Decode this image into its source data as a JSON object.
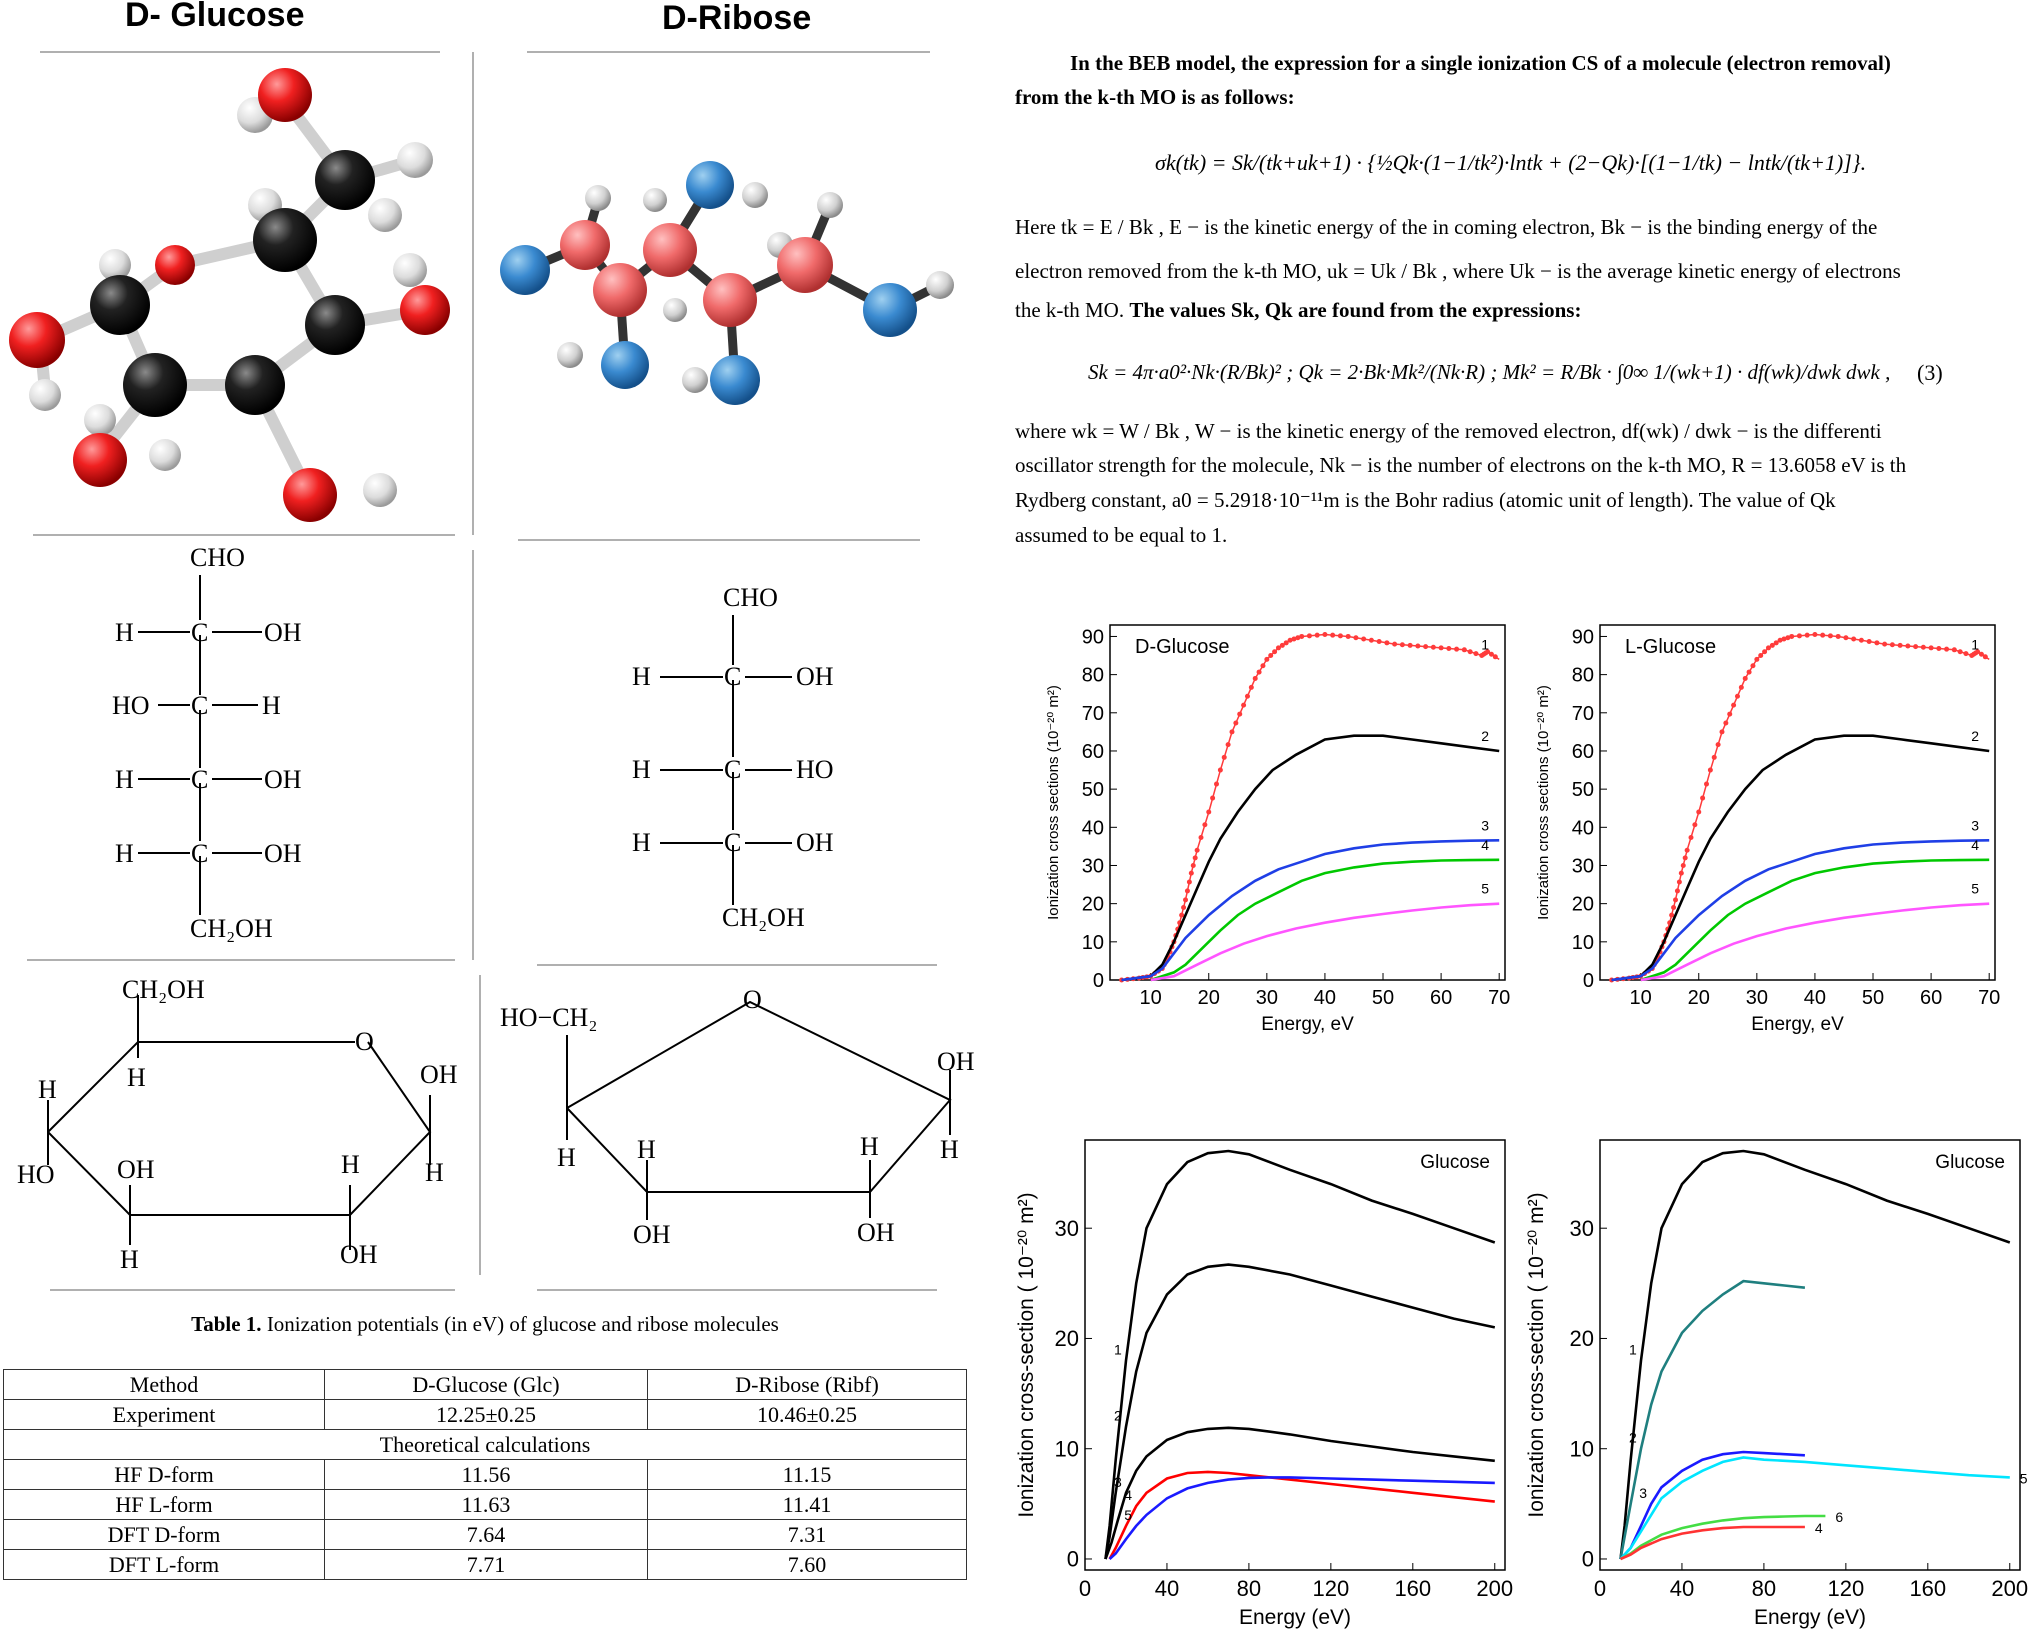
{
  "headers": {
    "glucose": "D- Glucose",
    "ribose": "D-Ribose"
  },
  "fischer_glucose": {
    "top": "CHO",
    "h": "H",
    "c": "C",
    "oh": "OH",
    "ho": "HO",
    "bottom": "CH₂OH"
  },
  "fischer_ribose": {
    "top": "CHO",
    "h": "H",
    "c": "C",
    "oh": "OH",
    "ho": "HO",
    "bottom": "CH₂OH"
  },
  "ring_glucose": {
    "top": "CH₂OH",
    "o": "O",
    "oh": "OH",
    "h": "H",
    "ho": "HO"
  },
  "ring_ribose": {
    "top": "HO−CH₂",
    "o": "O",
    "oh": "OH",
    "h": "H"
  },
  "text": {
    "p1_l1": "In the BEB model, the expression for a single ionization CS of a molecule (electron removal)",
    "p1_l2": "from the k-th MO is as follows:",
    "eq1": "σk(tk) = Sk/(tk+uk+1) · {½Qk·(1−1/tk²)·lntk + (2−Qk)·[(1−1/tk) − lntk/(tk+1)]}.",
    "p2_l1": "Here tk = E / Bk , E − is the kinetic energy of the in coming electron, Bk − is the binding energy of the",
    "p2_l2": "electron removed from the k-th MO, uk = Uk / Bk , where Uk − is the average kinetic energy of electrons",
    "p2_l3a": "the k-th MO. ",
    "p2_l3b": "The values Sk, Qk are found from the expressions:",
    "eq2": "Sk = 4π·a0²·Nk·(R/Bk)² ; Qk = 2·Bk·Mk²/(Nk·R) ; Mk² = R/Bk · ∫0∞ 1/(wk+1) · df(wk)/dwk dwk ,",
    "eq2_num": "(3)",
    "p3_l1": "where  wk = W / Bk , W − is the kinetic energy of the removed electron, df(wk) / dwk − is the differenti",
    "p3_l2": "oscillator strength for the molecule, Nk − is the number of electrons on the k-th MO, R = 13.6058 eV is th",
    "p3_l3": "Rydberg  constant,  a0 = 5.2918·10⁻¹¹m  is the Bohr radius (atomic unit of length). The value of Qk",
    "p3_l4": "assumed to be equal to 1."
  },
  "table": {
    "caption_bold": "Table 1.",
    "caption_rest": " Ionization potentials (in eV) of glucose and ribose molecules",
    "headers": [
      "Method",
      "D-Glucose (Glc)",
      "D-Ribose (Ribf)"
    ],
    "section": "Theoretical calculations",
    "rows": [
      [
        "Experiment",
        "12.25±0.25",
        "10.46±0.25"
      ],
      [
        "HF D-form",
        "11.56",
        "11.15"
      ],
      [
        "HF L-form",
        "11.63",
        "11.41"
      ],
      [
        "DFT D-form",
        "7.64",
        "7.31"
      ],
      [
        "DFT L-form",
        "7.71",
        "7.60"
      ]
    ]
  },
  "chart_data": [
    {
      "type": "line",
      "title": "D-Glucose",
      "xlabel": "Energy, eV",
      "ylabel": "Ionization cross sections (10⁻²⁰ m²)",
      "xlim": [
        3,
        71
      ],
      "ylim": [
        0,
        93
      ],
      "xticks": [
        10,
        20,
        30,
        40,
        50,
        60,
        70
      ],
      "yticks": [
        0,
        10,
        20,
        30,
        40,
        50,
        60,
        70,
        80,
        90
      ],
      "series": [
        {
          "name": "1",
          "color": "#ff3b3b",
          "markers": true,
          "x": [
            5,
            8,
            10,
            12,
            13,
            14,
            15,
            16,
            17,
            18,
            20,
            22,
            24,
            26,
            28,
            30,
            32,
            34,
            36,
            40,
            44,
            48,
            52,
            56,
            60,
            64,
            67,
            68,
            70
          ],
          "y": [
            0,
            0.5,
            1,
            3,
            6,
            10,
            15,
            21,
            28,
            34,
            44,
            55,
            65,
            72,
            79,
            84,
            87,
            89,
            90,
            90.5,
            90,
            89,
            88,
            87.5,
            87,
            86.5,
            85,
            86,
            84
          ]
        },
        {
          "name": "2",
          "color": "#000000",
          "x": [
            5,
            10,
            12,
            14,
            16,
            18,
            20,
            22,
            25,
            28,
            31,
            35,
            40,
            45,
            50,
            55,
            60,
            65,
            70
          ],
          "y": [
            0,
            1,
            4,
            10,
            17,
            24,
            31,
            37,
            44,
            50,
            55,
            59,
            63,
            64,
            64,
            63,
            62,
            61,
            60
          ]
        },
        {
          "name": "3",
          "color": "#1f3fe6",
          "x": [
            5,
            10,
            12,
            14,
            16,
            18,
            20,
            24,
            28,
            32,
            36,
            40,
            45,
            50,
            55,
            60,
            65,
            70
          ],
          "y": [
            0,
            1,
            3,
            7,
            11,
            14,
            17,
            22,
            26,
            29,
            31,
            33,
            34.5,
            35.5,
            36,
            36.3,
            36.5,
            36.6
          ]
        },
        {
          "name": "4",
          "color": "#00c800",
          "x": [
            10,
            14,
            16,
            18,
            20,
            22,
            25,
            28,
            32,
            36,
            40,
            45,
            50,
            55,
            60,
            65,
            70
          ],
          "y": [
            0,
            2,
            4,
            7,
            10,
            13,
            17,
            20,
            23,
            26,
            28,
            29.5,
            30.5,
            31,
            31.3,
            31.4,
            31.5
          ]
        },
        {
          "name": "5",
          "color": "#ff55ff",
          "x": [
            10,
            14,
            18,
            22,
            26,
            30,
            35,
            40,
            45,
            50,
            55,
            60,
            65,
            70
          ],
          "y": [
            0,
            1,
            4,
            7,
            9.5,
            11.5,
            13.5,
            15,
            16.3,
            17.3,
            18.2,
            19,
            19.6,
            20
          ]
        }
      ]
    },
    {
      "type": "line",
      "title": "L-Glucose",
      "xlabel": "Energy, eV",
      "ylabel": "Ionization cross sections (10⁻²⁰ m²)",
      "xlim": [
        3,
        71
      ],
      "ylim": [
        0,
        93
      ],
      "xticks": [
        10,
        20,
        30,
        40,
        50,
        60,
        70
      ],
      "yticks": [
        0,
        10,
        20,
        30,
        40,
        50,
        60,
        70,
        80,
        90
      ],
      "series": [
        {
          "name": "1",
          "color": "#ff3b3b",
          "markers": true,
          "x": [
            5,
            8,
            10,
            12,
            13,
            14,
            15,
            16,
            17,
            18,
            20,
            22,
            24,
            26,
            28,
            30,
            32,
            34,
            36,
            40,
            44,
            48,
            52,
            56,
            60,
            64,
            67,
            68,
            70
          ],
          "y": [
            0,
            0.5,
            1,
            3,
            6,
            10,
            15,
            21,
            28,
            34,
            44,
            55,
            65,
            72,
            79,
            84,
            87,
            89,
            90,
            90.5,
            90,
            89,
            88,
            87.5,
            87,
            86.5,
            85,
            86,
            84
          ]
        },
        {
          "name": "2",
          "color": "#000000",
          "x": [
            5,
            10,
            12,
            14,
            16,
            18,
            20,
            22,
            25,
            28,
            31,
            35,
            40,
            45,
            50,
            55,
            60,
            65,
            70
          ],
          "y": [
            0,
            1,
            4,
            10,
            17,
            24,
            31,
            37,
            44,
            50,
            55,
            59,
            63,
            64,
            64,
            63,
            62,
            61,
            60
          ]
        },
        {
          "name": "3",
          "color": "#1f3fe6",
          "x": [
            5,
            10,
            12,
            14,
            16,
            18,
            20,
            24,
            28,
            32,
            36,
            40,
            45,
            50,
            55,
            60,
            65,
            70
          ],
          "y": [
            0,
            1,
            3,
            7,
            11,
            14,
            17,
            22,
            26,
            29,
            31,
            33,
            34.5,
            35.5,
            36,
            36.3,
            36.5,
            36.6
          ]
        },
        {
          "name": "4",
          "color": "#00c800",
          "x": [
            10,
            14,
            16,
            18,
            20,
            22,
            25,
            28,
            32,
            36,
            40,
            45,
            50,
            55,
            60,
            65,
            70
          ],
          "y": [
            0,
            2,
            4,
            7,
            10,
            13,
            17,
            20,
            23,
            26,
            28,
            29.5,
            30.5,
            31,
            31.3,
            31.4,
            31.5
          ]
        },
        {
          "name": "5",
          "color": "#ff55ff",
          "x": [
            10,
            14,
            18,
            22,
            26,
            30,
            35,
            40,
            45,
            50,
            55,
            60,
            65,
            70
          ],
          "y": [
            0,
            1,
            4,
            7,
            9.5,
            11.5,
            13.5,
            15,
            16.3,
            17.3,
            18.2,
            19,
            19.6,
            20
          ]
        }
      ]
    },
    {
      "type": "line",
      "title": "Glucose",
      "xlabel": "Energy (eV)",
      "ylabel": "Ionization cross-section  ( 10⁻²⁰ m²)",
      "xlim": [
        0,
        205
      ],
      "ylim": [
        -1,
        38
      ],
      "xticks": [
        0,
        40,
        80,
        120,
        160,
        200
      ],
      "yticks": [
        0,
        10,
        20,
        30
      ],
      "series": [
        {
          "name": "1",
          "color": "#000000",
          "x": [
            10,
            12,
            15,
            20,
            25,
            30,
            40,
            50,
            60,
            70,
            80,
            100,
            120,
            140,
            160,
            180,
            200
          ],
          "y": [
            0,
            3,
            9,
            18,
            25,
            30,
            34,
            36,
            36.8,
            37,
            36.7,
            35.3,
            34,
            32.5,
            31.3,
            30,
            28.7
          ]
        },
        {
          "name": "2",
          "color": "#000000",
          "x": [
            10,
            12,
            15,
            20,
            25,
            30,
            40,
            50,
            60,
            70,
            80,
            100,
            120,
            140,
            160,
            180,
            200
          ],
          "y": [
            0,
            2,
            6,
            12,
            17,
            20.5,
            24,
            25.8,
            26.5,
            26.7,
            26.5,
            25.8,
            24.8,
            23.8,
            22.8,
            21.8,
            21
          ]
        },
        {
          "name": "3",
          "color": "#000000",
          "x": [
            10,
            13,
            16,
            20,
            25,
            30,
            40,
            50,
            60,
            70,
            80,
            100,
            120,
            140,
            160,
            180,
            200
          ],
          "y": [
            0,
            1.5,
            3.5,
            6,
            8,
            9.3,
            10.8,
            11.5,
            11.8,
            11.9,
            11.8,
            11.3,
            10.7,
            10.2,
            9.7,
            9.3,
            8.9
          ]
        },
        {
          "name": "4",
          "color": "#ff0000",
          "x": [
            12,
            15,
            20,
            25,
            30,
            40,
            50,
            60,
            70,
            80,
            100,
            120,
            140,
            160,
            180,
            200
          ],
          "y": [
            0,
            1,
            3,
            4.8,
            6,
            7.3,
            7.8,
            7.9,
            7.8,
            7.6,
            7.2,
            6.8,
            6.4,
            6,
            5.6,
            5.2
          ]
        },
        {
          "name": "5",
          "color": "#1a1aff",
          "x": [
            12,
            15,
            20,
            25,
            30,
            40,
            50,
            60,
            70,
            80,
            90,
            100,
            120,
            140,
            160,
            180,
            200
          ],
          "y": [
            0,
            0.5,
            1.8,
            3,
            4,
            5.5,
            6.4,
            6.9,
            7.2,
            7.35,
            7.4,
            7.4,
            7.3,
            7.2,
            7.1,
            7,
            6.9
          ]
        }
      ]
    },
    {
      "type": "line",
      "title": "Glucose",
      "xlabel": "Energy (eV)",
      "ylabel": "Ionization cross-section  ( 10⁻²⁰ m²)",
      "xlim": [
        0,
        205
      ],
      "ylim": [
        -1,
        38
      ],
      "xticks": [
        0,
        40,
        80,
        120,
        160,
        200
      ],
      "yticks": [
        0,
        10,
        20,
        30
      ],
      "series": [
        {
          "name": "1",
          "color": "#000000",
          "x": [
            10,
            12,
            15,
            20,
            25,
            30,
            40,
            50,
            60,
            70,
            80,
            100,
            120,
            140,
            160,
            180,
            200
          ],
          "y": [
            0,
            3,
            9,
            18,
            25,
            30,
            34,
            36,
            36.8,
            37,
            36.7,
            35.3,
            34,
            32.5,
            31.3,
            30,
            28.7
          ]
        },
        {
          "name": "2",
          "color": "#1f7f7f",
          "x": [
            10,
            12,
            15,
            20,
            25,
            30,
            40,
            50,
            60,
            70,
            80,
            90,
            100
          ],
          "y": [
            0,
            2,
            5,
            10,
            14,
            17,
            20.5,
            22.5,
            24,
            25.2,
            25,
            24.8,
            24.6
          ]
        },
        {
          "name": "3",
          "color": "#1a1aff",
          "x": [
            10,
            15,
            20,
            25,
            30,
            40,
            50,
            60,
            70,
            80,
            90,
            100
          ],
          "y": [
            0,
            1,
            3,
            5,
            6.5,
            8,
            9,
            9.5,
            9.7,
            9.6,
            9.5,
            9.4
          ]
        },
        {
          "name": "5",
          "color": "#00e5ff",
          "x": [
            10,
            15,
            20,
            25,
            30,
            40,
            50,
            60,
            70,
            80,
            100,
            120,
            140,
            160,
            180,
            200
          ],
          "y": [
            0,
            1,
            2.5,
            4,
            5.5,
            7,
            8,
            8.8,
            9.2,
            9,
            8.8,
            8.5,
            8.2,
            7.9,
            7.6,
            7.4
          ]
        },
        {
          "name": "6",
          "color": "#44dd44",
          "x": [
            10,
            15,
            20,
            30,
            40,
            50,
            60,
            70,
            80,
            90,
            100,
            110
          ],
          "y": [
            0,
            0.5,
            1.2,
            2.2,
            2.8,
            3.2,
            3.5,
            3.7,
            3.8,
            3.85,
            3.9,
            3.9
          ]
        },
        {
          "name": "4",
          "color": "#ff3333",
          "x": [
            10,
            15,
            20,
            30,
            40,
            50,
            60,
            70,
            80,
            90,
            100
          ],
          "y": [
            0,
            0.4,
            1,
            1.8,
            2.3,
            2.6,
            2.8,
            2.9,
            2.9,
            2.9,
            2.9
          ]
        }
      ]
    }
  ]
}
